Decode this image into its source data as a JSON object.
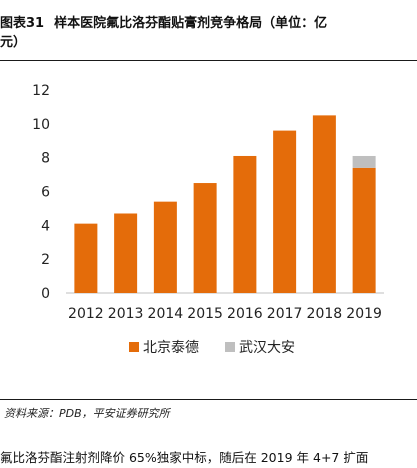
{
  "figure": {
    "label": "图表31",
    "title_line1": "样本医院氟比洛芬酯贴膏剂竞争格局（单位：亿",
    "title_line2": "元）",
    "source": "资料来源：PDB，平安证券研究所",
    "body_text": "氟比洛芬酯注射剂降价 65%独家中标，随后在 2019 年 4+7 扩面"
  },
  "chart_data": {
    "type": "bar",
    "stacked": true,
    "categories": [
      "2012",
      "2013",
      "2014",
      "2015",
      "2016",
      "2017",
      "2018",
      "2019"
    ],
    "series": [
      {
        "name": "北京泰德",
        "color": "#E46C0A",
        "values": [
          4.1,
          4.7,
          5.4,
          6.5,
          8.1,
          9.6,
          10.5,
          7.4
        ]
      },
      {
        "name": "武汉大安",
        "color": "#BFBFBF",
        "values": [
          0,
          0,
          0,
          0,
          0,
          0,
          0,
          0.7
        ]
      }
    ],
    "ylim": [
      0,
      12
    ],
    "yticks": [
      0,
      2,
      4,
      6,
      8,
      10,
      12
    ],
    "grid": false,
    "legend_position": "bottom"
  }
}
